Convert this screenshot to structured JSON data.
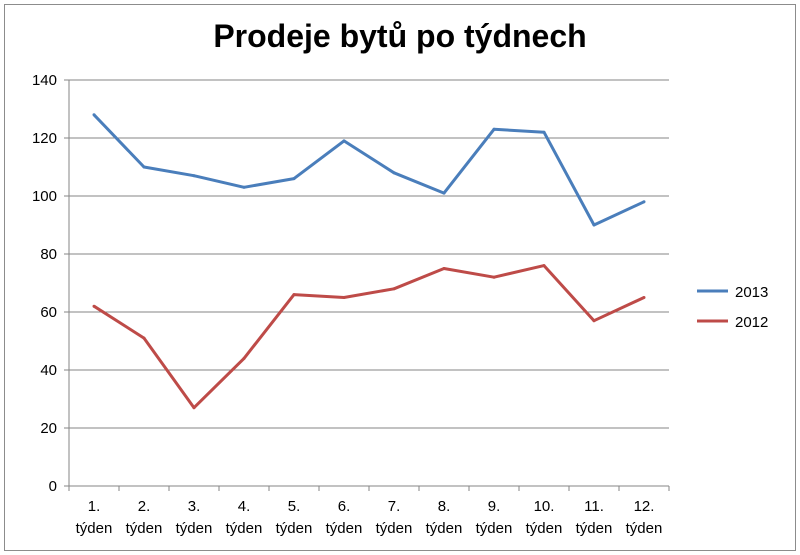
{
  "chart_data": {
    "type": "line",
    "title": "Prodeje bytů po týdnech",
    "categories": [
      [
        "1.",
        "týden"
      ],
      [
        "2.",
        "týden"
      ],
      [
        "3.",
        "týden"
      ],
      [
        "4.",
        "týden"
      ],
      [
        "5.",
        "týden"
      ],
      [
        "6.",
        "týden"
      ],
      [
        "7.",
        "týden"
      ],
      [
        "8.",
        "týden"
      ],
      [
        "9.",
        "týden"
      ],
      [
        "10.",
        "týden"
      ],
      [
        "11.",
        "týden"
      ],
      [
        "12.",
        "týden"
      ]
    ],
    "series": [
      {
        "name": "2013",
        "color": "#4a7ebb",
        "values": [
          128,
          110,
          107,
          103,
          106,
          119,
          108,
          101,
          123,
          122,
          90,
          98
        ]
      },
      {
        "name": "2012",
        "color": "#be4b48",
        "values": [
          62,
          51,
          27,
          44,
          66,
          65,
          68,
          75,
          72,
          76,
          57,
          65
        ]
      }
    ],
    "ylim": [
      0,
      140
    ],
    "yticks": [
      0,
      20,
      40,
      60,
      80,
      100,
      120,
      140
    ],
    "grid": true,
    "legend": "right"
  }
}
